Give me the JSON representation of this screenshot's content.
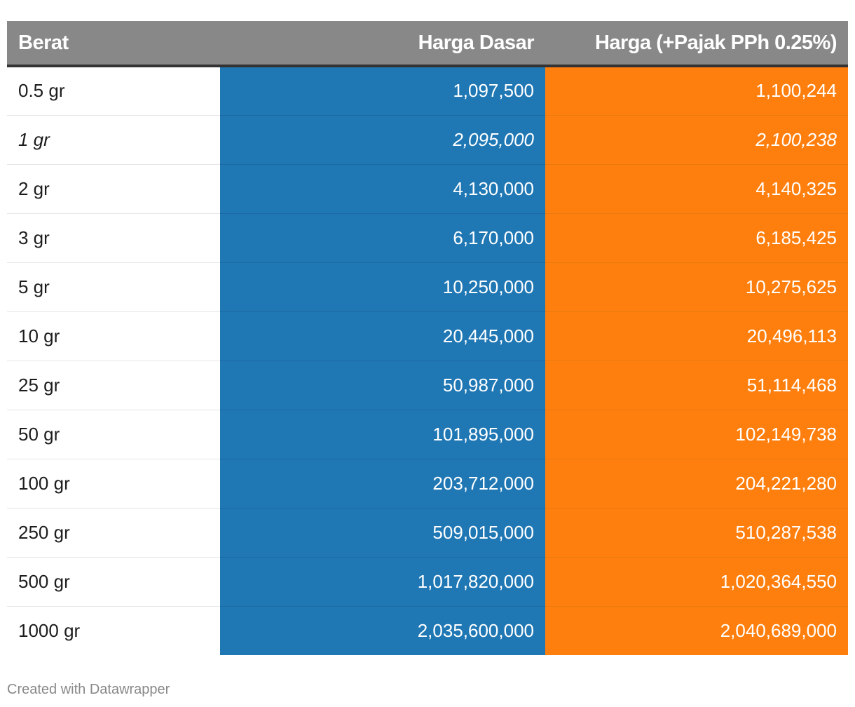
{
  "columns": {
    "weight": "Berat",
    "base": "Harga Dasar",
    "tax": "Harga (+Pajak PPh 0.25%)"
  },
  "colors": {
    "header_bg": "#888888",
    "base_col": "#1f77b4",
    "tax_col": "#ff7f0e"
  },
  "rows": [
    {
      "weight": "0.5 gr",
      "base": "1,097,500",
      "tax": "1,100,244",
      "italic": false
    },
    {
      "weight": "1 gr",
      "base": "2,095,000",
      "tax": "2,100,238",
      "italic": true
    },
    {
      "weight": "2 gr",
      "base": "4,130,000",
      "tax": "4,140,325",
      "italic": false
    },
    {
      "weight": "3 gr",
      "base": "6,170,000",
      "tax": "6,185,425",
      "italic": false
    },
    {
      "weight": "5 gr",
      "base": "10,250,000",
      "tax": "10,275,625",
      "italic": false
    },
    {
      "weight": "10 gr",
      "base": "20,445,000",
      "tax": "20,496,113",
      "italic": false
    },
    {
      "weight": "25 gr",
      "base": "50,987,000",
      "tax": "51,114,468",
      "italic": false
    },
    {
      "weight": "50 gr",
      "base": "101,895,000",
      "tax": "102,149,738",
      "italic": false
    },
    {
      "weight": "100 gr",
      "base": "203,712,000",
      "tax": "204,221,280",
      "italic": false
    },
    {
      "weight": "250 gr",
      "base": "509,015,000",
      "tax": "510,287,538",
      "italic": false
    },
    {
      "weight": "500 gr",
      "base": "1,017,820,000",
      "tax": "1,020,364,550",
      "italic": false
    },
    {
      "weight": "1000 gr",
      "base": "2,035,600,000",
      "tax": "2,040,689,000",
      "italic": false
    }
  ],
  "chart_data": {
    "type": "table",
    "headers": [
      "Berat",
      "Harga Dasar",
      "Harga (+Pajak PPh 0.25%)"
    ],
    "rows": [
      [
        "0.5 gr",
        1097500,
        1100244
      ],
      [
        "1 gr",
        2095000,
        2100238
      ],
      [
        "2 gr",
        4130000,
        4140325
      ],
      [
        "3 gr",
        6170000,
        6185425
      ],
      [
        "5 gr",
        10250000,
        10275625
      ],
      [
        "10 gr",
        20445000,
        20496113
      ],
      [
        "25 gr",
        50987000,
        51114468
      ],
      [
        "50 gr",
        101895000,
        102149738
      ],
      [
        "100 gr",
        203712000,
        204221280
      ],
      [
        "250 gr",
        509015000,
        510287538
      ],
      [
        "500 gr",
        1017820000,
        1020364550
      ],
      [
        "1000 gr",
        2035600000,
        2040689000
      ]
    ]
  },
  "footer": "Created with Datawrapper"
}
